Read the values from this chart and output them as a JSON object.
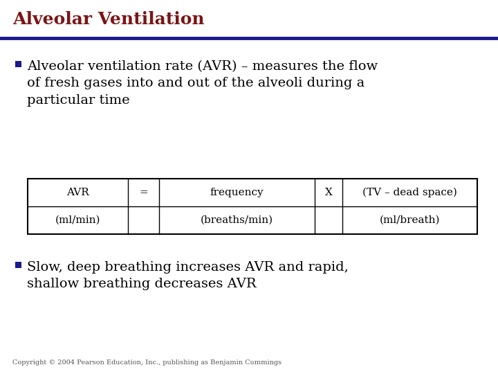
{
  "title": "Alveolar Ventilation",
  "title_color": "#7B1515",
  "title_fontsize": 18,
  "separator_color": "#1A1A8C",
  "slide_bg": "#FFFFFF",
  "bullet_color": "#1A1A8C",
  "bullet1_line1": "Alveolar ventilation rate (AVR) – measures the flow",
  "bullet1_line2": "of fresh gases into and out of the alveoli during a",
  "bullet1_line3": "particular time",
  "bullet2_line1": "Slow, deep breathing increases AVR and rapid,",
  "bullet2_line2": "shallow breathing decreases AVR",
  "table_row1": [
    "AVR",
    "=",
    "frequency",
    "X",
    "(TV – dead space)"
  ],
  "table_row2": [
    "(ml/min)",
    "",
    "(breaths/min)",
    "",
    "(ml/breath)"
  ],
  "table_border_color": "#000000",
  "table_bg": "#FFFFFF",
  "text_color": "#000000",
  "body_fontsize": 14,
  "table_fontsize": 11,
  "copyright": "Copyright © 2004 Pearson Education, Inc., publishing as Benjamin Cummings",
  "copyright_fontsize": 7
}
